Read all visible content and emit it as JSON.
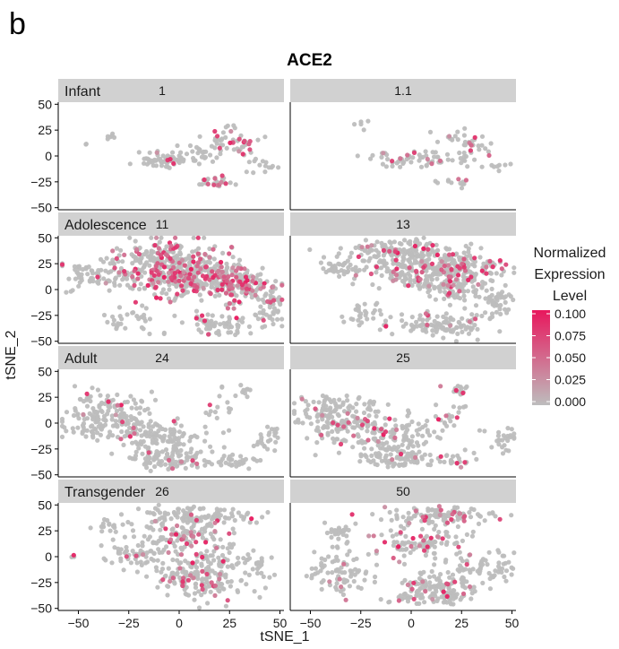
{
  "figure": {
    "panel_letter": "b"
  },
  "chart_data": {
    "type": "scatter",
    "title": "ACE2",
    "xlabel": "tSNE_1",
    "ylabel": "tSNE_2",
    "xlim": [
      -60,
      52
    ],
    "ylim": [
      -52,
      52
    ],
    "x_ticks": [
      -50,
      -25,
      0,
      25,
      50
    ],
    "y_ticks": [
      -50,
      -25,
      0,
      25,
      50
    ],
    "x_tick_labels": [
      "−50",
      "−25",
      "0",
      "25",
      "50"
    ],
    "y_tick_labels": [
      "−50",
      "−25",
      "0",
      "25",
      "50"
    ],
    "legend": {
      "title_lines": [
        "Normalized",
        "Expression",
        "Level"
      ],
      "range": [
        0,
        0.1
      ],
      "ticks": [
        "0.100",
        "0.075",
        "0.050",
        "0.025",
        "0.000"
      ],
      "low_color": "#bdbdbd",
      "high_color": "#e8175d",
      "placement": "right"
    },
    "point_color": "#bdbdbd",
    "high_color": "#e8175d",
    "facet_rows": [
      {
        "label": "Infant",
        "panels": [
          {
            "strip": "1",
            "ylim": [
              -50,
              50
            ]
          },
          {
            "strip": "1.1",
            "ylim": [
              -50,
              50
            ]
          }
        ]
      },
      {
        "label": "Adolescence",
        "panels": [
          {
            "strip": "11",
            "ylim": [
              -50,
              50
            ]
          },
          {
            "strip": "13",
            "ylim": [
              -50,
              50
            ]
          }
        ]
      },
      {
        "label": "Adult",
        "panels": [
          {
            "strip": "24",
            "ylim": [
              -50,
              50
            ]
          },
          {
            "strip": "25",
            "ylim": [
              -50,
              50
            ]
          }
        ]
      },
      {
        "label": "Transgender",
        "panels": [
          {
            "strip": "26",
            "ylim": [
              -50,
              50
            ]
          },
          {
            "strip": "50",
            "ylim": [
              -50,
              50
            ]
          }
        ]
      }
    ],
    "clusters": [
      [
        {
          "x": -45,
          "y": 12,
          "sx": 1,
          "sy": 1,
          "n": 2,
          "expr": 0
        },
        {
          "x": -35,
          "y": 20,
          "sx": 3,
          "sy": 3,
          "n": 6,
          "expr": 0
        },
        {
          "x": -8,
          "y": -3,
          "sx": 8,
          "sy": 4,
          "n": 60,
          "expr": 0.01
        },
        {
          "x": 10,
          "y": 2,
          "sx": 6,
          "sy": 5,
          "n": 25,
          "expr": 0.01
        },
        {
          "x": 25,
          "y": 12,
          "sx": 6,
          "sy": 5,
          "n": 45,
          "expr": 0.05
        },
        {
          "x": 18,
          "y": -25,
          "sx": 5,
          "sy": 3,
          "n": 25,
          "expr": 0.04
        },
        {
          "x": 40,
          "y": -10,
          "sx": 4,
          "sy": 6,
          "n": 15,
          "expr": 0
        },
        {
          "x": 25,
          "y": 30,
          "sx": 3,
          "sy": 3,
          "n": 4,
          "expr": 0
        }
      ],
      [
        {
          "x": -25,
          "y": 32,
          "sx": 3,
          "sy": 3,
          "n": 5,
          "expr": 0
        },
        {
          "x": 0,
          "y": -3,
          "sx": 12,
          "sy": 4,
          "n": 60,
          "expr": 0.02
        },
        {
          "x": 20,
          "y": 18,
          "sx": 4,
          "sy": 3,
          "n": 10,
          "expr": 0.03
        },
        {
          "x": 30,
          "y": 12,
          "sx": 4,
          "sy": 5,
          "n": 25,
          "expr": 0.05
        },
        {
          "x": 25,
          "y": -5,
          "sx": 3,
          "sy": 3,
          "n": 6,
          "expr": 0.01
        },
        {
          "x": 20,
          "y": -25,
          "sx": 5,
          "sy": 3,
          "n": 12,
          "expr": 0.03
        },
        {
          "x": 43,
          "y": -10,
          "sx": 4,
          "sy": 3,
          "n": 8,
          "expr": 0
        }
      ],
      [
        {
          "x": -40,
          "y": 15,
          "sx": 9,
          "sy": 8,
          "n": 60,
          "expr": 0.01
        },
        {
          "x": -5,
          "y": 30,
          "sx": 14,
          "sy": 9,
          "n": 220,
          "expr": 0.04
        },
        {
          "x": -2,
          "y": 8,
          "sx": 15,
          "sy": 9,
          "n": 200,
          "expr": 0.05
        },
        {
          "x": 20,
          "y": 12,
          "sx": 10,
          "sy": 8,
          "n": 130,
          "expr": 0.05
        },
        {
          "x": 32,
          "y": 0,
          "sx": 8,
          "sy": 8,
          "n": 80,
          "expr": 0.06
        },
        {
          "x": 45,
          "y": -15,
          "sx": 4,
          "sy": 10,
          "n": 50,
          "expr": 0.01
        },
        {
          "x": 20,
          "y": -35,
          "sx": 10,
          "sy": 6,
          "n": 70,
          "expr": 0.01
        },
        {
          "x": -25,
          "y": -30,
          "sx": 7,
          "sy": 8,
          "n": 30,
          "expr": 0
        },
        {
          "x": -52,
          "y": 0,
          "sx": 2,
          "sy": 2,
          "n": 3,
          "expr": 0
        }
      ],
      [
        {
          "x": -35,
          "y": 20,
          "sx": 5,
          "sy": 6,
          "n": 40,
          "expr": 0
        },
        {
          "x": -5,
          "y": 35,
          "sx": 14,
          "sy": 7,
          "n": 180,
          "expr": 0.02
        },
        {
          "x": 10,
          "y": 15,
          "sx": 15,
          "sy": 7,
          "n": 180,
          "expr": 0.03
        },
        {
          "x": 28,
          "y": 25,
          "sx": 8,
          "sy": 7,
          "n": 80,
          "expr": 0.04
        },
        {
          "x": 22,
          "y": 0,
          "sx": 8,
          "sy": 6,
          "n": 70,
          "expr": 0.02
        },
        {
          "x": 42,
          "y": -10,
          "sx": 5,
          "sy": 8,
          "n": 50,
          "expr": 0
        },
        {
          "x": 15,
          "y": -35,
          "sx": 12,
          "sy": 6,
          "n": 110,
          "expr": 0.01
        },
        {
          "x": -25,
          "y": -25,
          "sx": 6,
          "sy": 7,
          "n": 30,
          "expr": 0
        }
      ],
      [
        {
          "x": -35,
          "y": 5,
          "sx": 11,
          "sy": 12,
          "n": 180,
          "expr": 0.01
        },
        {
          "x": -10,
          "y": -15,
          "sx": 10,
          "sy": 10,
          "n": 120,
          "expr": 0.01
        },
        {
          "x": -5,
          "y": -38,
          "sx": 9,
          "sy": 4,
          "n": 60,
          "expr": 0.01
        },
        {
          "x": 30,
          "y": 32,
          "sx": 3,
          "sy": 3,
          "n": 10,
          "expr": 0.02
        },
        {
          "x": 22,
          "y": 10,
          "sx": 5,
          "sy": 10,
          "n": 15,
          "expr": 0.02
        },
        {
          "x": 45,
          "y": -15,
          "sx": 4,
          "sy": 6,
          "n": 25,
          "expr": 0
        },
        {
          "x": 25,
          "y": -38,
          "sx": 6,
          "sy": 3,
          "n": 30,
          "expr": 0
        },
        {
          "x": 5,
          "y": -30,
          "sx": 5,
          "sy": 4,
          "n": 15,
          "expr": 0
        }
      ],
      [
        {
          "x": -35,
          "y": 5,
          "sx": 11,
          "sy": 12,
          "n": 180,
          "expr": 0.01
        },
        {
          "x": -10,
          "y": -15,
          "sx": 10,
          "sy": 10,
          "n": 120,
          "expr": 0.01
        },
        {
          "x": -5,
          "y": -35,
          "sx": 9,
          "sy": 5,
          "n": 60,
          "expr": 0.01
        },
        {
          "x": 22,
          "y": 32,
          "sx": 4,
          "sy": 3,
          "n": 20,
          "expr": 0.03
        },
        {
          "x": 20,
          "y": 5,
          "sx": 5,
          "sy": 10,
          "n": 20,
          "expr": 0.02
        },
        {
          "x": 45,
          "y": -15,
          "sx": 4,
          "sy": 6,
          "n": 25,
          "expr": 0
        },
        {
          "x": 22,
          "y": -35,
          "sx": 6,
          "sy": 4,
          "n": 25,
          "expr": 0.02
        }
      ],
      [
        {
          "x": -52,
          "y": 0,
          "sx": 1,
          "sy": 1,
          "n": 3,
          "expr": 0.03
        },
        {
          "x": -35,
          "y": 30,
          "sx": 3,
          "sy": 3,
          "n": 15,
          "expr": 0
        },
        {
          "x": -20,
          "y": 5,
          "sx": 8,
          "sy": 9,
          "n": 60,
          "expr": 0.01
        },
        {
          "x": 10,
          "y": 40,
          "sx": 14,
          "sy": 4,
          "n": 100,
          "expr": 0.01
        },
        {
          "x": 0,
          "y": 20,
          "sx": 12,
          "sy": 8,
          "n": 110,
          "expr": 0.03
        },
        {
          "x": 10,
          "y": -20,
          "sx": 10,
          "sy": 10,
          "n": 180,
          "expr": 0.02
        },
        {
          "x": 25,
          "y": 0,
          "sx": 5,
          "sy": 6,
          "n": 25,
          "expr": 0.01
        },
        {
          "x": 40,
          "y": -10,
          "sx": 4,
          "sy": 10,
          "n": 25,
          "expr": 0
        }
      ],
      [
        {
          "x": -35,
          "y": 25,
          "sx": 4,
          "sy": 4,
          "n": 25,
          "expr": 0
        },
        {
          "x": -35,
          "y": -15,
          "sx": 8,
          "sy": 12,
          "n": 80,
          "expr": 0.01
        },
        {
          "x": 15,
          "y": 40,
          "sx": 14,
          "sy": 4,
          "n": 100,
          "expr": 0.02
        },
        {
          "x": 5,
          "y": 15,
          "sx": 12,
          "sy": 8,
          "n": 110,
          "expr": 0.03
        },
        {
          "x": 12,
          "y": -30,
          "sx": 10,
          "sy": 8,
          "n": 140,
          "expr": 0.02
        },
        {
          "x": 30,
          "y": -10,
          "sx": 5,
          "sy": 6,
          "n": 30,
          "expr": 0.01
        },
        {
          "x": 45,
          "y": -10,
          "sx": 4,
          "sy": 9,
          "n": 30,
          "expr": 0
        },
        {
          "x": -5,
          "y": -40,
          "sx": 6,
          "sy": 3,
          "n": 15,
          "expr": 0.02
        }
      ]
    ]
  }
}
